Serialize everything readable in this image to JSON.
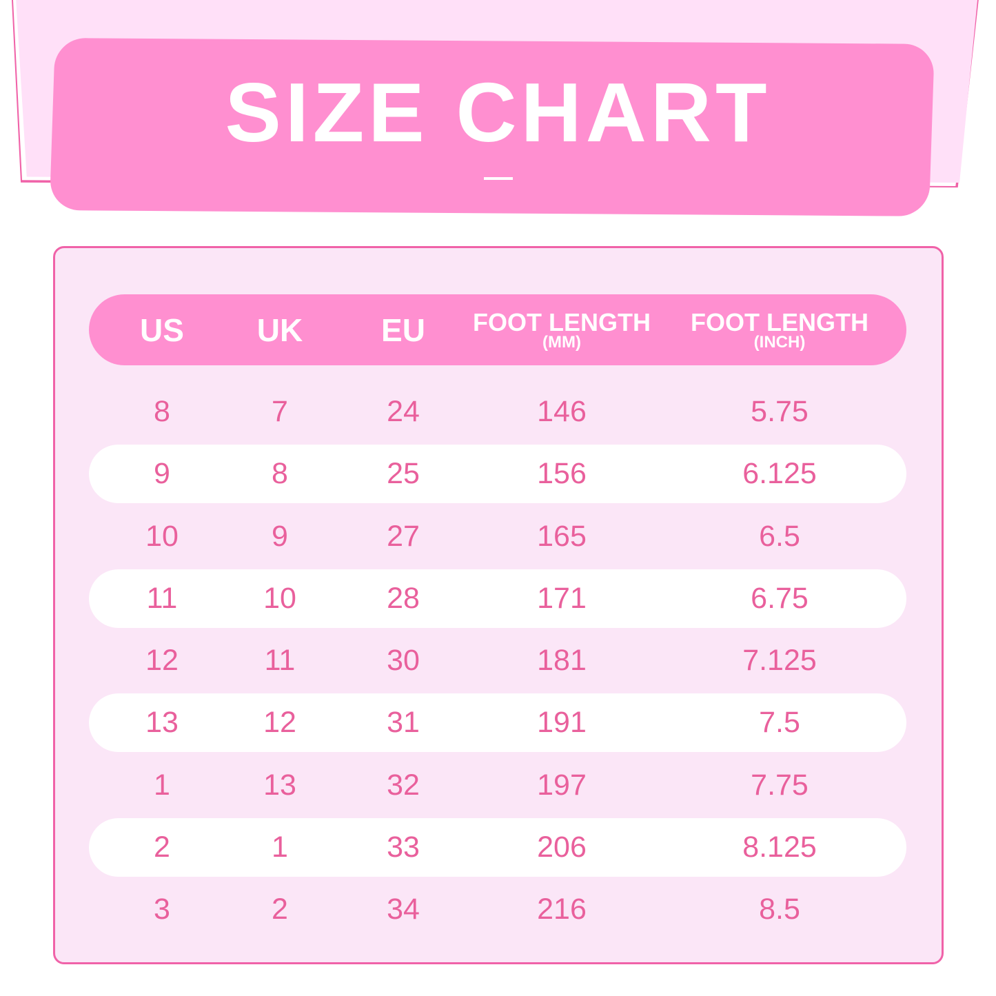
{
  "title": "SIZE CHART",
  "colors": {
    "banner": "#ff8fd0",
    "accent_border": "#f062a8",
    "panel": "#fbe6f7",
    "text": "#e9609c"
  },
  "chart_data": {
    "type": "table",
    "columns": [
      {
        "label": "US",
        "sub": ""
      },
      {
        "label": "UK",
        "sub": ""
      },
      {
        "label": "EU",
        "sub": ""
      },
      {
        "label": "FOOT LENGTH",
        "sub": "(MM)"
      },
      {
        "label": "FOOT LENGTH",
        "sub": "(INCH)"
      }
    ],
    "rows": [
      [
        "8",
        "7",
        "24",
        "146",
        "5.75"
      ],
      [
        "9",
        "8",
        "25",
        "156",
        "6.125"
      ],
      [
        "10",
        "9",
        "27",
        "165",
        "6.5"
      ],
      [
        "11",
        "10",
        "28",
        "171",
        "6.75"
      ],
      [
        "12",
        "11",
        "30",
        "181",
        "7.125"
      ],
      [
        "13",
        "12",
        "31",
        "191",
        "7.5"
      ],
      [
        "1",
        "13",
        "32",
        "197",
        "7.75"
      ],
      [
        "2",
        "1",
        "33",
        "206",
        "8.125"
      ],
      [
        "3",
        "2",
        "34",
        "216",
        "8.5"
      ]
    ]
  }
}
